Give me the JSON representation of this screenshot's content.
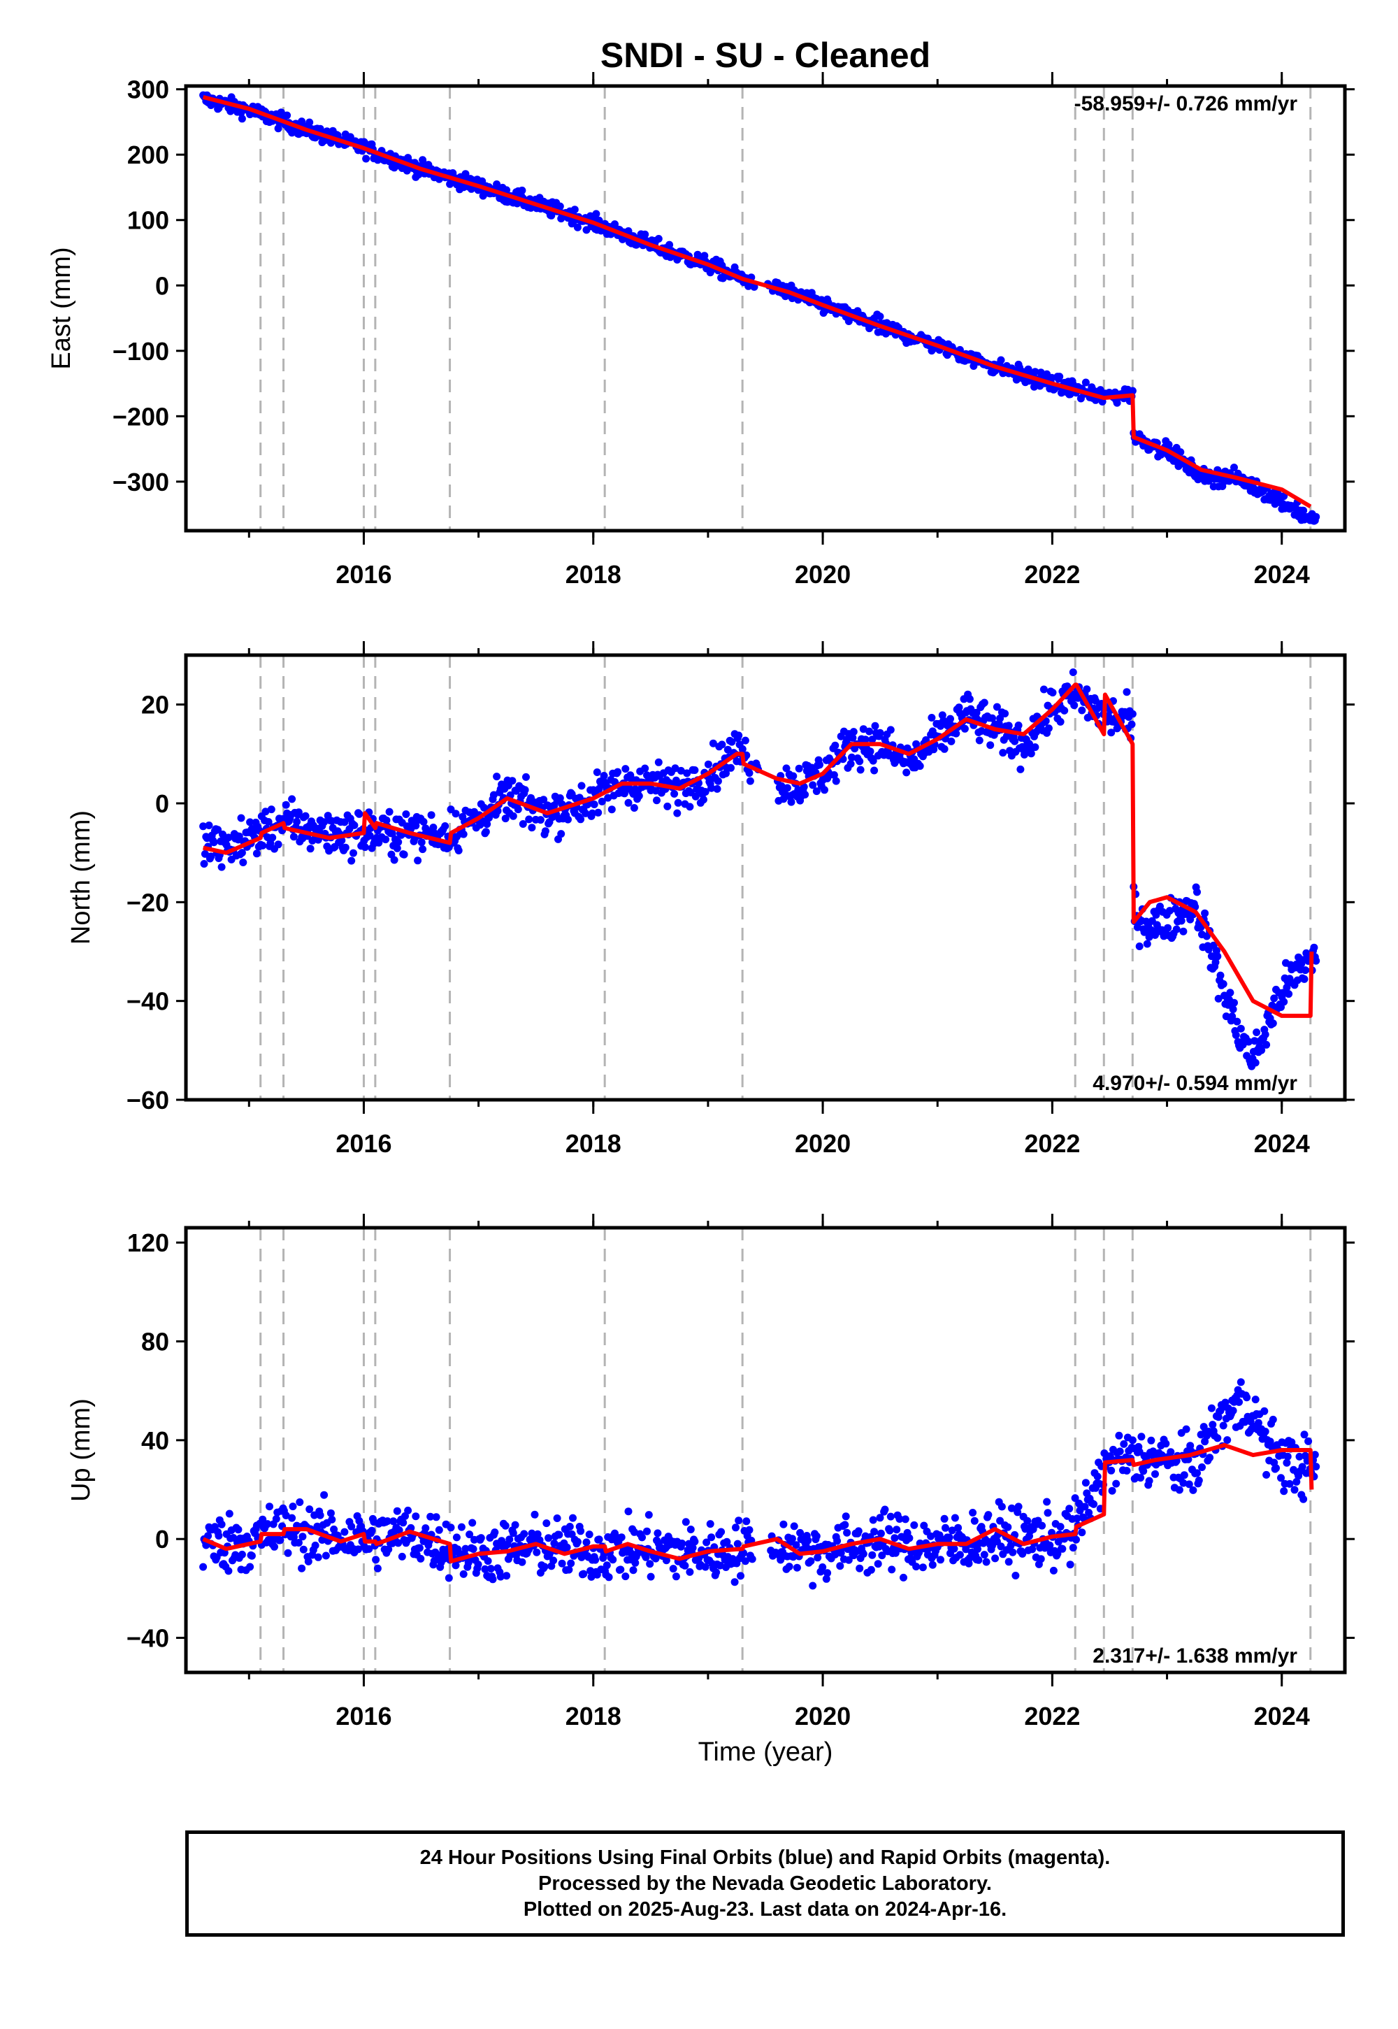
{
  "title": "SNDI  - SU - Cleaned",
  "xlabel": "Time (year)",
  "footer": {
    "line1": "24 Hour Positions Using Final Orbits (blue) and Rapid Orbits (magenta).",
    "line2": "Processed by the Nevada Geodetic Laboratory.",
    "line3": "Plotted on 2025-Aug-23. Last data on 2024-Apr-16."
  },
  "colors": {
    "data": "#0000ff",
    "model": "#ff0000",
    "event_lines": "#b4b4b4",
    "frame": "#000000"
  },
  "chart_data": [
    {
      "type": "scatter",
      "name": "east",
      "ylabel": "East (mm)",
      "rate_text": "-58.959+/- 0.726 mm/yr",
      "rate_position": "top-right",
      "xlim": [
        2014.45,
        2024.55
      ],
      "ylim": [
        -375,
        305
      ],
      "yticks": [
        -300,
        -200,
        -100,
        0,
        100,
        200,
        300
      ],
      "xticks": [
        2016,
        2018,
        2020,
        2022,
        2024
      ],
      "events": [
        2015.1,
        2015.3,
        2016.0,
        2016.1,
        2016.75,
        2018.1,
        2019.3,
        2022.2,
        2022.45,
        2022.7,
        2024.25
      ],
      "model": {
        "x": [
          2014.6,
          2015.0,
          2015.5,
          2016.0,
          2016.5,
          2017.0,
          2017.5,
          2018.0,
          2018.5,
          2019.0,
          2019.3,
          2019.7,
          2020.0,
          2020.5,
          2021.0,
          2021.5,
          2022.0,
          2022.45,
          2022.7,
          2022.71,
          2023.0,
          2023.3,
          2023.6,
          2024.0,
          2024.25
        ],
        "y": [
          288,
          270,
          238,
          210,
          178,
          152,
          124,
          96,
          62,
          32,
          10,
          -10,
          -30,
          -62,
          -92,
          -124,
          -150,
          -172,
          -168,
          -232,
          -252,
          -282,
          -294,
          -312,
          -338
        ]
      },
      "data": {
        "knots_x": [
          2014.6,
          2015.0,
          2015.5,
          2016.0,
          2016.5,
          2017.0,
          2017.5,
          2018.0,
          2018.5,
          2019.0,
          2019.3,
          2019.7,
          2020.0,
          2020.5,
          2021.0,
          2021.5,
          2022.0,
          2022.45,
          2022.7,
          2022.71,
          2023.0,
          2023.3,
          2023.6,
          2024.0,
          2024.3
        ],
        "knots_y": [
          285,
          268,
          238,
          210,
          178,
          152,
          124,
          96,
          62,
          32,
          10,
          -10,
          -30,
          -62,
          -92,
          -124,
          -150,
          -170,
          -165,
          -232,
          -252,
          -292,
          -294,
          -330,
          -362
        ],
        "noise": 6
      }
    },
    {
      "type": "scatter",
      "name": "north",
      "ylabel": "North (mm)",
      "rate_text": "4.970+/- 0.594 mm/yr",
      "rate_position": "bottom-right",
      "xlim": [
        2014.45,
        2024.55
      ],
      "ylim": [
        -60,
        30
      ],
      "yticks": [
        -60,
        -40,
        -20,
        0,
        20
      ],
      "xticks": [
        2016,
        2018,
        2020,
        2022,
        2024
      ],
      "events": [
        2015.1,
        2015.3,
        2016.0,
        2016.1,
        2016.75,
        2018.1,
        2019.3,
        2022.2,
        2022.45,
        2022.7,
        2024.25
      ],
      "model": {
        "x": [
          2014.6,
          2014.8,
          2015.1,
          2015.11,
          2015.3,
          2015.31,
          2015.7,
          2016.0,
          2016.01,
          2016.1,
          2016.11,
          2016.4,
          2016.75,
          2016.76,
          2017.0,
          2017.25,
          2017.6,
          2018.0,
          2018.25,
          2018.5,
          2018.75,
          2019.0,
          2019.25,
          2019.3,
          2019.31,
          2019.6,
          2019.8,
          2020.0,
          2020.25,
          2020.5,
          2020.75,
          2021.0,
          2021.25,
          2021.5,
          2021.75,
          2022.0,
          2022.2,
          2022.21,
          2022.45,
          2022.46,
          2022.7,
          2022.71,
          2022.85,
          2023.0,
          2023.25,
          2023.5,
          2023.75,
          2024.0,
          2024.25,
          2024.26
        ],
        "y": [
          -9,
          -10,
          -7,
          -6,
          -4,
          -5,
          -7,
          -6,
          -2,
          -5,
          -4,
          -6,
          -8,
          -6,
          -3,
          1,
          -2,
          1,
          4,
          4,
          3,
          6,
          10,
          10,
          8,
          5,
          4,
          6,
          12,
          12,
          10,
          13,
          17,
          15,
          14,
          19,
          24,
          24,
          14,
          22,
          12,
          -24,
          -20,
          -19,
          -22,
          -30,
          -40,
          -43,
          -43,
          -30
        ]
      },
      "data": {
        "knots_x": [
          2014.6,
          2014.8,
          2015.1,
          2015.3,
          2015.7,
          2016.0,
          2016.4,
          2016.75,
          2017.0,
          2017.25,
          2017.6,
          2018.0,
          2018.25,
          2018.5,
          2018.75,
          2019.0,
          2019.25,
          2019.6,
          2019.8,
          2020.0,
          2020.25,
          2020.5,
          2020.75,
          2021.0,
          2021.25,
          2021.5,
          2021.75,
          2022.0,
          2022.2,
          2022.45,
          2022.7,
          2022.71,
          2022.85,
          2023.0,
          2023.25,
          2023.45,
          2023.6,
          2023.75,
          2024.0,
          2024.3
        ],
        "knots_y": [
          -8,
          -9,
          -6,
          -4,
          -6,
          -6,
          -6,
          -6,
          -3,
          1,
          -2,
          1,
          4,
          4,
          3,
          6,
          11,
          4,
          4,
          6,
          12,
          12,
          8,
          13,
          18,
          15,
          12,
          19,
          22,
          18,
          16,
          -22,
          -25,
          -24,
          -20,
          -35,
          -45,
          -52,
          -38,
          -30
        ],
        "noise": 2.2
      }
    },
    {
      "type": "scatter",
      "name": "up",
      "ylabel": "Up (mm)",
      "rate_text": "2.317+/- 1.638 mm/yr",
      "rate_position": "bottom-right",
      "xlim": [
        2014.45,
        2024.55
      ],
      "ylim": [
        -54,
        126
      ],
      "yticks": [
        -40,
        0,
        40,
        80,
        120
      ],
      "xticks": [
        2016,
        2018,
        2020,
        2022,
        2024
      ],
      "events": [
        2015.1,
        2015.3,
        2016.0,
        2016.1,
        2016.75,
        2018.1,
        2019.3,
        2022.2,
        2022.45,
        2022.7,
        2024.25
      ],
      "model": {
        "x": [
          2014.6,
          2014.8,
          2015.1,
          2015.11,
          2015.3,
          2015.31,
          2015.5,
          2015.8,
          2016.0,
          2016.01,
          2016.1,
          2016.11,
          2016.4,
          2016.75,
          2016.76,
          2017.0,
          2017.25,
          2017.5,
          2017.75,
          2018.0,
          2018.1,
          2018.11,
          2018.3,
          2018.5,
          2018.75,
          2019.0,
          2019.3,
          2019.31,
          2019.6,
          2019.8,
          2020.0,
          2020.25,
          2020.5,
          2020.75,
          2021.0,
          2021.25,
          2021.5,
          2021.75,
          2022.0,
          2022.2,
          2022.21,
          2022.45,
          2022.46,
          2022.7,
          2022.71,
          2022.9,
          2023.2,
          2023.5,
          2023.75,
          2024.0,
          2024.25,
          2024.26
        ],
        "y": [
          0,
          -4,
          -1,
          2,
          2,
          4,
          4,
          -1,
          2,
          -1,
          -1,
          -2,
          3,
          -2,
          -9,
          -6,
          -5,
          -2,
          -6,
          -3,
          -3,
          -5,
          -2,
          -5,
          -8,
          -5,
          -4,
          -3,
          0,
          -6,
          -5,
          -2,
          0,
          -4,
          -2,
          -2,
          4,
          -2,
          1,
          2,
          5,
          10,
          31,
          32,
          30,
          32,
          34,
          38,
          34,
          36,
          36,
          20
        ]
      },
      "data": {
        "knots_x": [
          2014.6,
          2015.0,
          2015.3,
          2015.6,
          2016.0,
          2016.4,
          2016.75,
          2017.0,
          2017.5,
          2018.0,
          2018.5,
          2019.0,
          2019.3,
          2019.6,
          2020.0,
          2020.5,
          2021.0,
          2021.5,
          2022.0,
          2022.2,
          2022.45,
          2022.6,
          2022.9,
          2023.2,
          2023.5,
          2023.7,
          2023.9,
          2024.1,
          2024.3
        ],
        "knots_y": [
          -2,
          -1,
          4,
          2,
          0,
          2,
          -3,
          -6,
          -3,
          -5,
          -4,
          -6,
          -4,
          -2,
          -5,
          -1,
          -3,
          1,
          0,
          3,
          28,
          32,
          33,
          28,
          50,
          55,
          36,
          30,
          28
        ],
        "noise": 6
      }
    }
  ]
}
